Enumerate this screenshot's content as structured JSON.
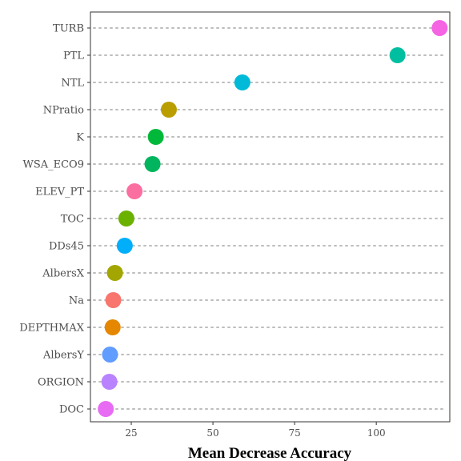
{
  "chart_data": {
    "type": "scatter",
    "subtype": "dot-plot",
    "title": "",
    "xlabel": "Mean Decrease Accuracy",
    "ylabel": "",
    "xlim": [
      12.5,
      122.5
    ],
    "xticks": [
      25,
      50,
      75,
      100
    ],
    "grid": "horizontal dotted lines",
    "legend": "none",
    "categories": [
      "TURB",
      "PTL",
      "NTL",
      "NPratio",
      "K",
      "WSA_ECO9",
      "ELEV_PT",
      "TOC",
      "DDs45",
      "AlbersX",
      "Na",
      "DEPTHMAX",
      "AlbersY",
      "ORGION",
      "DOC"
    ],
    "values": [
      119.4,
      106.5,
      59.0,
      36.5,
      32.5,
      31.5,
      26.0,
      23.5,
      23.0,
      20.0,
      19.5,
      19.3,
      18.5,
      18.3,
      17.2
    ],
    "colors": [
      "#F564E3",
      "#00BFA0",
      "#00BAD8",
      "#BA9E00",
      "#00B93A",
      "#00B55D",
      "#FB6EA0",
      "#6BB100",
      "#00AEFA",
      "#A3A500",
      "#F8766D",
      "#E58700",
      "#619CFF",
      "#B983FF",
      "#E76BF3"
    ]
  }
}
